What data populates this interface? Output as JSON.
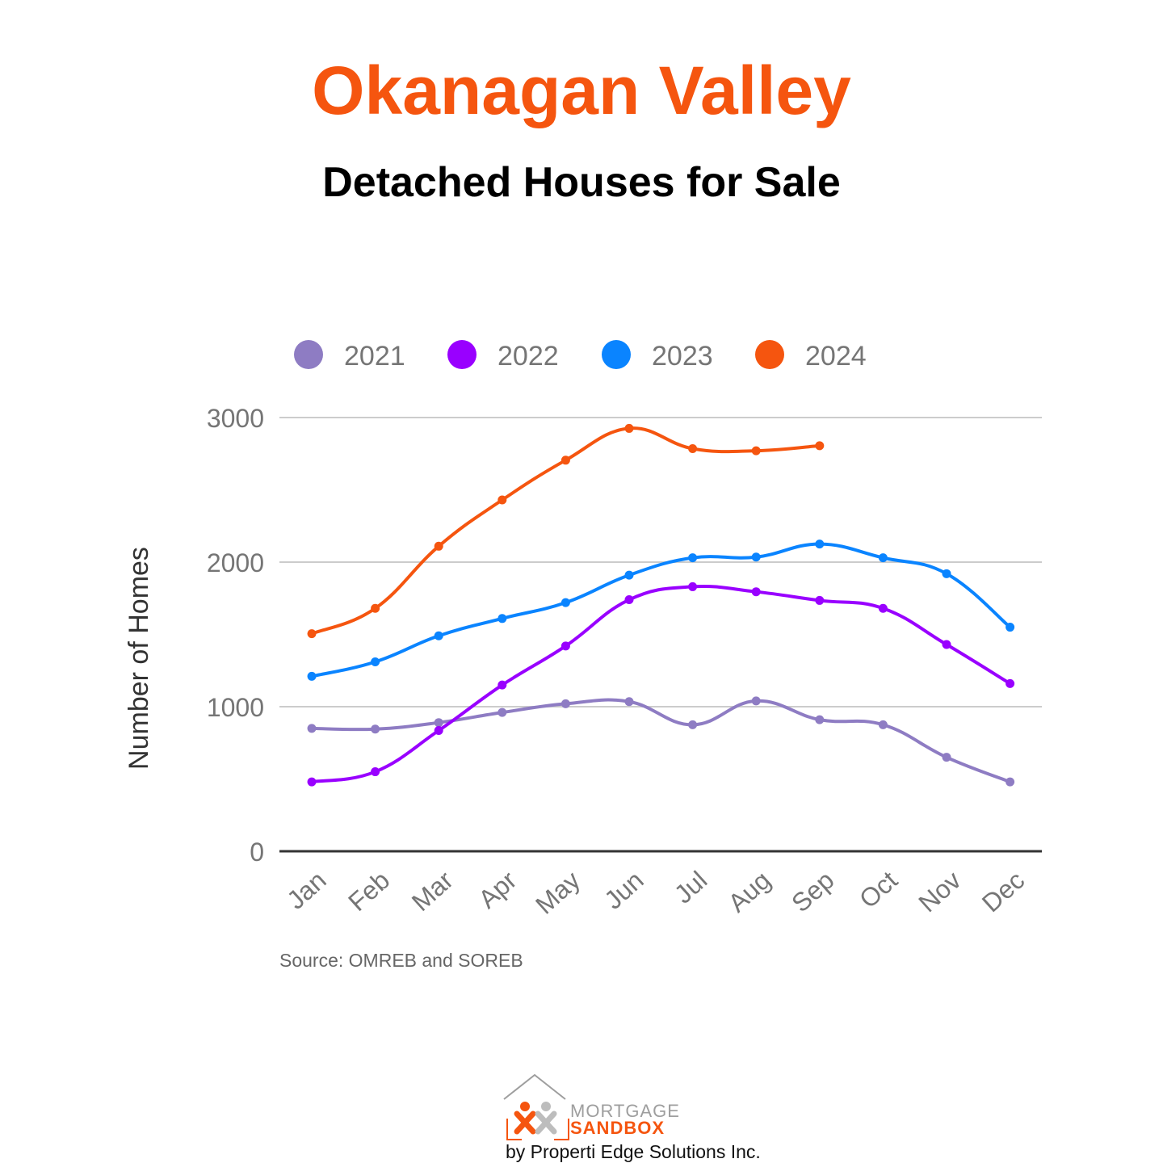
{
  "header": {
    "title": "Okanagan Valley",
    "subtitle": "Detached Houses for Sale"
  },
  "colors": {
    "accent": "#F5550F",
    "series_2021": "#8E7CC3",
    "series_2022": "#9900FF",
    "series_2023": "#0A84FF",
    "series_2024": "#F5550F",
    "grid": "#CCCCCC",
    "axis": "#333333",
    "tick_text": "#757575"
  },
  "chart_data": {
    "type": "line",
    "title": "Detached Houses for Sale",
    "xlabel": "",
    "ylabel": "Number of Homes",
    "ylim": [
      0,
      3000
    ],
    "yticks": [
      0,
      1000,
      2000,
      3000
    ],
    "grid": true,
    "legend_position": "top",
    "categories": [
      "Jan",
      "Feb",
      "Mar",
      "Apr",
      "May",
      "Jun",
      "Jul",
      "Aug",
      "Sep",
      "Oct",
      "Nov",
      "Dec"
    ],
    "series": [
      {
        "name": "2021",
        "values": [
          850,
          845,
          890,
          960,
          1020,
          1035,
          875,
          1040,
          910,
          875,
          650,
          480
        ]
      },
      {
        "name": "2022",
        "values": [
          480,
          550,
          835,
          1150,
          1420,
          1740,
          1830,
          1795,
          1735,
          1680,
          1430,
          1160
        ]
      },
      {
        "name": "2023",
        "values": [
          1210,
          1310,
          1490,
          1610,
          1720,
          1910,
          2030,
          2035,
          2125,
          2030,
          1920,
          1550
        ]
      },
      {
        "name": "2024",
        "values": [
          1505,
          1680,
          2110,
          2430,
          2705,
          2925,
          2785,
          2770,
          2805,
          null,
          null,
          null
        ]
      }
    ]
  },
  "source": "Source: OMREB and SOREB",
  "logo": {
    "line1": "MORTGAGE",
    "line2": "SANDBOX",
    "tagline": "by Properti Edge Solutions Inc."
  }
}
